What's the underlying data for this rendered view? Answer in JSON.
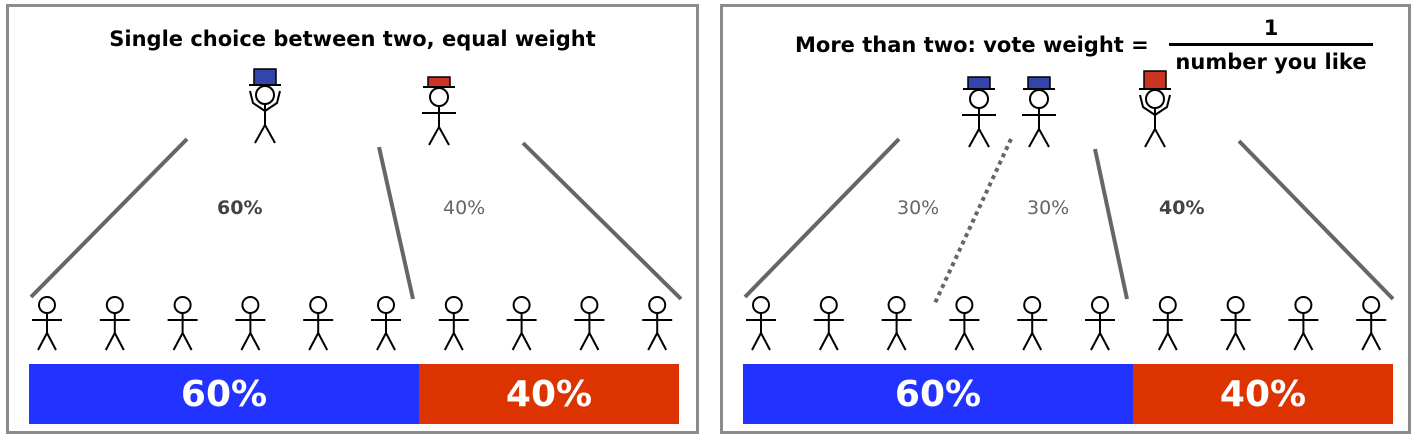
{
  "colors": {
    "blue": "#2233ff",
    "red": "#dd3300",
    "line": "#666666",
    "border": "#8c8c8c"
  },
  "panels": [
    {
      "title": "Single choice between two, equal weight",
      "hats": [
        "blue",
        "red"
      ],
      "share_labels": [
        "60%",
        "40%"
      ],
      "bar": [
        {
          "label": "60%",
          "value": 0.6,
          "color": "blue"
        },
        {
          "label": "40%",
          "value": 0.4,
          "color": "red"
        }
      ]
    },
    {
      "title": "More than two: vote weight =",
      "fraction": {
        "numerator": "1",
        "denominator": "number you like"
      },
      "hats": [
        "blue",
        "blue",
        "red"
      ],
      "share_labels": [
        "30%",
        "30%",
        "40%"
      ],
      "bar": [
        {
          "label": "60%",
          "value": 0.6,
          "color": "blue"
        },
        {
          "label": "40%",
          "value": 0.4,
          "color": "red"
        }
      ]
    }
  ]
}
